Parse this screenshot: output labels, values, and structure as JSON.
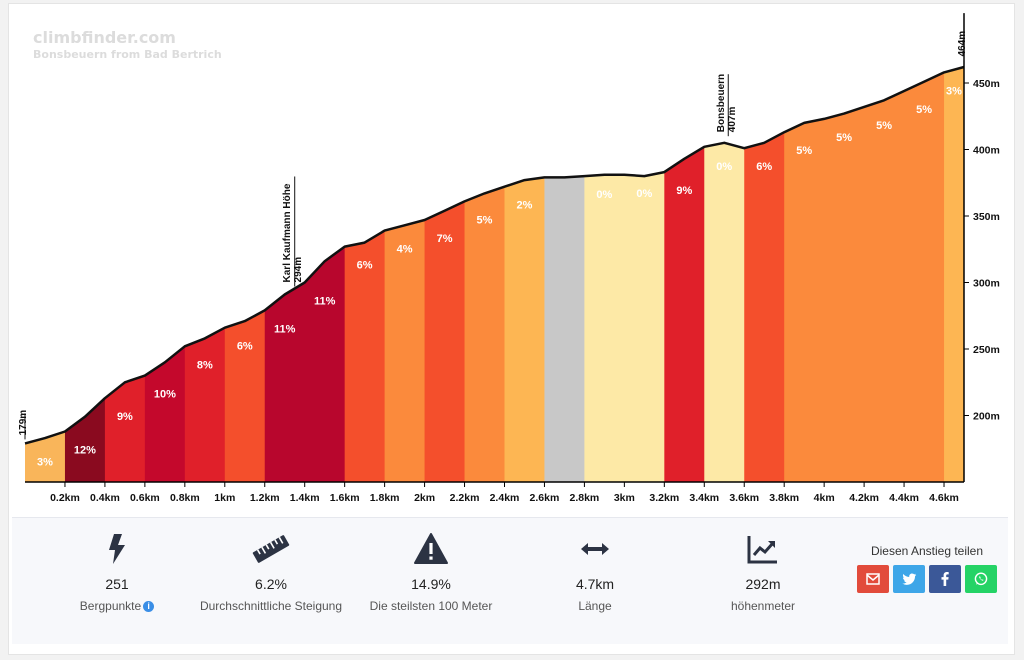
{
  "brand": {
    "site": "climbfinder.com",
    "subtitle": "Bonsbeuern from Bad Bertrich"
  },
  "chart_data": {
    "type": "area",
    "x_unit": "km",
    "ylim": [
      150,
      480
    ],
    "y_ticks": [
      200,
      250,
      300,
      350,
      400,
      450
    ],
    "y_tick_labels": [
      "200m",
      "250m",
      "300m",
      "350m",
      "400m",
      "450m"
    ],
    "x_tick_labels": [
      "0.2km",
      "0.4km",
      "0.6km",
      "0.8km",
      "1km",
      "1.2km",
      "1.4km",
      "1.6km",
      "1.8km",
      "2km",
      "2.2km",
      "2.4km",
      "2.6km",
      "2.8km",
      "3km",
      "3.2km",
      "3.4km",
      "3.6km",
      "3.8km",
      "4km",
      "4.2km",
      "4.4km",
      "4.6km"
    ],
    "x_ticks": [
      0.2,
      0.4,
      0.6,
      0.8,
      1.0,
      1.2,
      1.4,
      1.6,
      1.8,
      2.0,
      2.2,
      2.4,
      2.6,
      2.8,
      3.0,
      3.2,
      3.4,
      3.6,
      3.8,
      4.0,
      4.2,
      4.4,
      4.6
    ],
    "profile": [
      [
        0,
        179
      ],
      [
        0.1,
        183
      ],
      [
        0.2,
        188
      ],
      [
        0.3,
        199
      ],
      [
        0.4,
        213
      ],
      [
        0.5,
        225
      ],
      [
        0.6,
        230
      ],
      [
        0.7,
        240
      ],
      [
        0.8,
        252
      ],
      [
        0.9,
        258
      ],
      [
        1.0,
        266
      ],
      [
        1.1,
        271
      ],
      [
        1.2,
        279
      ],
      [
        1.3,
        291
      ],
      [
        1.4,
        300
      ],
      [
        1.5,
        316
      ],
      [
        1.6,
        327
      ],
      [
        1.7,
        330
      ],
      [
        1.8,
        339
      ],
      [
        1.9,
        343
      ],
      [
        2.0,
        347
      ],
      [
        2.1,
        354
      ],
      [
        2.2,
        361
      ],
      [
        2.3,
        367
      ],
      [
        2.4,
        372
      ],
      [
        2.5,
        377
      ],
      [
        2.6,
        379
      ],
      [
        2.7,
        379
      ],
      [
        2.8,
        380
      ],
      [
        2.9,
        381
      ],
      [
        3.0,
        381
      ],
      [
        3.1,
        380
      ],
      [
        3.2,
        383
      ],
      [
        3.3,
        393
      ],
      [
        3.4,
        402
      ],
      [
        3.5,
        405
      ],
      [
        3.6,
        401
      ],
      [
        3.7,
        405
      ],
      [
        3.8,
        413
      ],
      [
        3.9,
        420
      ],
      [
        4.0,
        423
      ],
      [
        4.1,
        427
      ],
      [
        4.2,
        432
      ],
      [
        4.3,
        437
      ],
      [
        4.4,
        444
      ],
      [
        4.5,
        451
      ],
      [
        4.6,
        458
      ],
      [
        4.7,
        462
      ]
    ],
    "segments": [
      {
        "from": 0.0,
        "to": 0.2,
        "gradient": "3%",
        "color": "#f9b55a"
      },
      {
        "from": 0.2,
        "to": 0.4,
        "gradient": "12%",
        "color": "#8a0a1f"
      },
      {
        "from": 0.4,
        "to": 0.6,
        "gradient": "9%",
        "color": "#e0202a"
      },
      {
        "from": 0.6,
        "to": 0.8,
        "gradient": "10%",
        "color": "#c4082c"
      },
      {
        "from": 0.8,
        "to": 1.0,
        "gradient": "8%",
        "color": "#e0202a"
      },
      {
        "from": 1.0,
        "to": 1.2,
        "gradient": "6%",
        "color": "#f44f2c"
      },
      {
        "from": 1.2,
        "to": 1.4,
        "gradient": "11%",
        "color": "#b8062d"
      },
      {
        "from": 1.4,
        "to": 1.6,
        "gradient": "11%",
        "color": "#b8062d"
      },
      {
        "from": 1.6,
        "to": 1.8,
        "gradient": "6%",
        "color": "#f44f2c"
      },
      {
        "from": 1.8,
        "to": 2.0,
        "gradient": "4%",
        "color": "#fb8a3c"
      },
      {
        "from": 2.0,
        "to": 2.2,
        "gradient": "7%",
        "color": "#f44f2c"
      },
      {
        "from": 2.2,
        "to": 2.4,
        "gradient": "5%",
        "color": "#fb8a3c"
      },
      {
        "from": 2.4,
        "to": 2.6,
        "gradient": "2%",
        "color": "#fdb653"
      },
      {
        "from": 2.6,
        "to": 2.8,
        "gradient": "",
        "color": "#c8c8c8"
      },
      {
        "from": 2.8,
        "to": 3.0,
        "gradient": "0%",
        "color": "#fde9a6"
      },
      {
        "from": 3.0,
        "to": 3.2,
        "gradient": "0%",
        "color": "#fde9a6"
      },
      {
        "from": 3.2,
        "to": 3.4,
        "gradient": "9%",
        "color": "#e0202a"
      },
      {
        "from": 3.4,
        "to": 3.6,
        "gradient": "0%",
        "color": "#fde9a6"
      },
      {
        "from": 3.6,
        "to": 3.8,
        "gradient": "6%",
        "color": "#f44f2c"
      },
      {
        "from": 3.8,
        "to": 4.0,
        "gradient": "5%",
        "color": "#fb8a3c"
      },
      {
        "from": 4.0,
        "to": 4.2,
        "gradient": "5%",
        "color": "#fb8a3c"
      },
      {
        "from": 4.2,
        "to": 4.4,
        "gradient": "5%",
        "color": "#fb8a3c"
      },
      {
        "from": 4.4,
        "to": 4.6,
        "gradient": "5%",
        "color": "#fb8a3c"
      },
      {
        "from": 4.6,
        "to": 4.7,
        "gradient": "3%",
        "color": "#fdb653"
      }
    ],
    "annotations": [
      {
        "x": 0.0,
        "elevation": 179,
        "lines": [
          "179m"
        ]
      },
      {
        "x": 1.35,
        "elevation": 294,
        "lines": [
          "Karl Kaufmann Höhe",
          "294m"
        ]
      },
      {
        "x": 3.52,
        "elevation": 407,
        "lines": [
          "Bonsbeuern",
          "407m"
        ]
      },
      {
        "x": 4.7,
        "elevation": 464,
        "lines": [
          "464m"
        ]
      }
    ]
  },
  "stats": [
    {
      "icon": "bolt-icon",
      "value": "251",
      "label": "Bergpunkte",
      "info": "i"
    },
    {
      "icon": "ruler-icon",
      "value": "6.2%",
      "label": "Durchschnittliche Steigung"
    },
    {
      "icon": "warning-icon",
      "value": "14.9%",
      "label": "Die steilsten 100 Meter"
    },
    {
      "icon": "arrows-horizontal-icon",
      "value": "4.7km",
      "label": "Länge"
    },
    {
      "icon": "chart-up-icon",
      "value": "292m",
      "label": "höhenmeter"
    }
  ],
  "share": {
    "label": "Diesen Anstieg teilen",
    "buttons": [
      {
        "icon": "envelope-icon",
        "color": "#e24b3b"
      },
      {
        "icon": "twitter-icon",
        "color": "#3ea6e8"
      },
      {
        "icon": "facebook-icon",
        "color": "#3b5898"
      },
      {
        "icon": "whatsapp-icon",
        "color": "#25d366"
      }
    ]
  }
}
